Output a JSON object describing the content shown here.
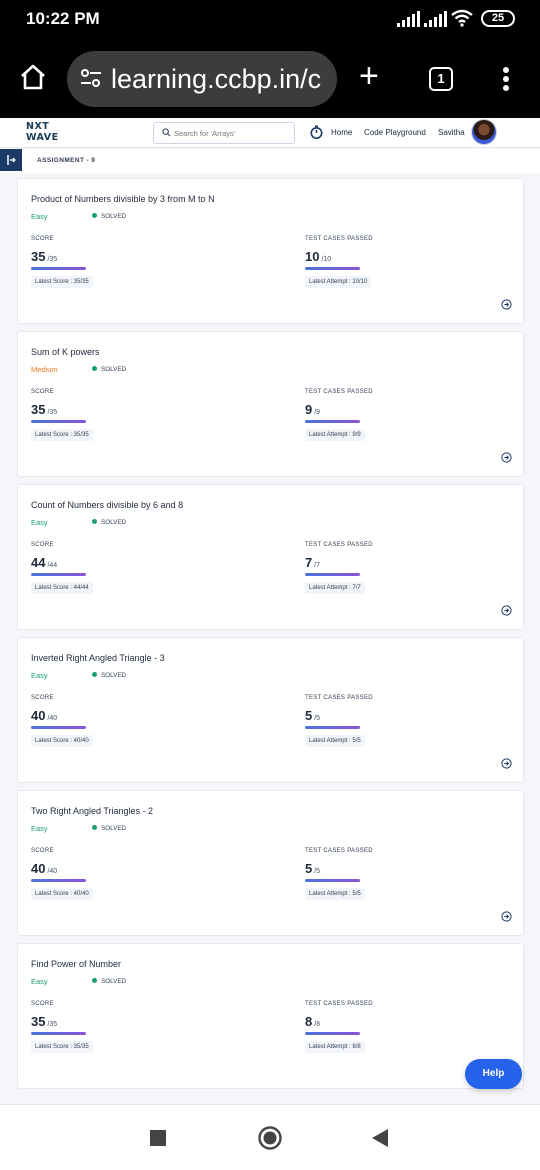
{
  "status_bar": {
    "time": "10:22 PM",
    "battery": "25"
  },
  "browser": {
    "url": "learning.ccbp.in/c",
    "tab_count": "1"
  },
  "header": {
    "logo_line1": "NXT",
    "logo_line2": "WAVE",
    "search_placeholder": "Search for 'Arrays'",
    "nav_home": "Home",
    "nav_code": "Code Playground",
    "user_name": "Savitha"
  },
  "breadcrumb": "ASSIGNMENT - 9",
  "labels": {
    "score": "SCORE",
    "tests": "TEST CASES PASSED",
    "solved": "SOLVED"
  },
  "cards": [
    {
      "title": "Product of Numbers divisible by 3 from M to N",
      "difficulty": "Easy",
      "score": "35",
      "score_total": "/35",
      "tests": "10",
      "tests_total": "/10",
      "latest_score": "Latest Score : 35/35",
      "latest_attempt": "Latest Attempt : 10/10"
    },
    {
      "title": "Sum of K powers",
      "difficulty": "Medium",
      "score": "35",
      "score_total": "/35",
      "tests": "9",
      "tests_total": "/9",
      "latest_score": "Latest Score : 35/35",
      "latest_attempt": "Latest Attempt : 9/9"
    },
    {
      "title": "Count of Numbers divisible by 6 and 8",
      "difficulty": "Easy",
      "score": "44",
      "score_total": "/44",
      "tests": "7",
      "tests_total": "/7",
      "latest_score": "Latest Score : 44/44",
      "latest_attempt": "Latest Attempt : 7/7"
    },
    {
      "title": "Inverted Right Angled Triangle - 3",
      "difficulty": "Easy",
      "score": "40",
      "score_total": "/40",
      "tests": "5",
      "tests_total": "/5",
      "latest_score": "Latest Score : 40/40",
      "latest_attempt": "Latest Attempt : 5/5"
    },
    {
      "title": "Two Right Angled Triangles - 2",
      "difficulty": "Easy",
      "score": "40",
      "score_total": "/40",
      "tests": "5",
      "tests_total": "/5",
      "latest_score": "Latest Score : 40/40",
      "latest_attempt": "Latest Attempt : 5/5"
    },
    {
      "title": "Find Power of Number",
      "difficulty": "Easy",
      "score": "35",
      "score_total": "/35",
      "tests": "8",
      "tests_total": "/8",
      "latest_score": "Latest Score : 35/35",
      "latest_attempt": "Latest Attempt : 8/8"
    }
  ],
  "help_label": "Help",
  "colors": {
    "easy": "#1aa06d",
    "medium": "#e67e22",
    "primary": "#2563eb",
    "nav_dark": "#1b3a66"
  }
}
